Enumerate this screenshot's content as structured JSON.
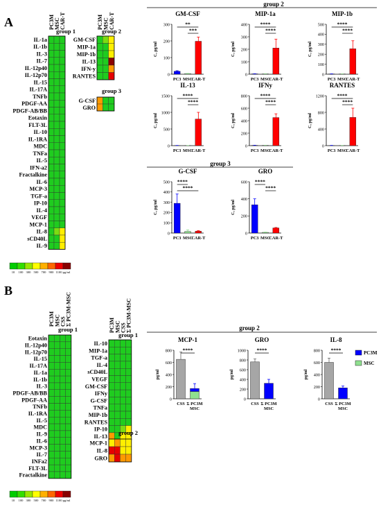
{
  "colors": {
    "red": "#ff0000",
    "blue": "#0000ff",
    "green": "#8fe08f",
    "gray": "#a6a6a6"
  },
  "panel_labels": [
    "A",
    "B"
  ],
  "legend": {
    "ticks": [
      "10",
      "100",
      "300",
      "500",
      "700",
      "900",
      "1100",
      "pg/ml"
    ],
    "colors": [
      "#00cc00",
      "#33dd00",
      "#99e600",
      "#ffff00",
      "#ffb000",
      "#ff6600",
      "#ee0000",
      "#880000"
    ]
  },
  "heatmap_values": {
    "G": "#1fcc1f",
    "g": "#7ddc12",
    "Y": "#ffef00",
    "O": "#ff9900",
    "R": "#e60000",
    "D": "#8b0000"
  },
  "heatmaps": [
    {
      "id": "A1",
      "group": "group 1",
      "columns": [
        "PC3M",
        "MSC",
        "CAR-T"
      ],
      "rows": [
        "IL-1a",
        "IL-1b",
        "IL-3",
        "IL-7",
        "IL-12p40",
        "IL-12p70",
        "IL-15",
        "IL-17A",
        "TNFb",
        "PDGF-AA",
        "PDGF-AB/BB",
        "Eotaxin",
        "FLT-3L",
        "IL-10",
        "IL-1RA",
        "MDC",
        "TNFa",
        "IL-5",
        "IFN-a2",
        "Fractalkine",
        "IL-6",
        "MCP-3",
        "TGF-a",
        "IP-10",
        "IL-4",
        "VEGF",
        "MCP-1",
        "IL-8",
        "sCD40L",
        "IL-9"
      ],
      "cells": [
        "GGG",
        "GGG",
        "GGG",
        "GGG",
        "GGG",
        "GGG",
        "GGG",
        "GGG",
        "GGG",
        "GGG",
        "GGG",
        "GGG",
        "GGG",
        "GGG",
        "GGG",
        "GGG",
        "GGG",
        "GGG",
        "GGG",
        "GGG",
        "GGG",
        "GGG",
        "GGG",
        "GGG",
        "GGG",
        "GGG",
        "GGG",
        "GgY",
        "GGY",
        "GGY"
      ]
    },
    {
      "id": "A2",
      "group": "group 2",
      "columns": [
        "PC3M",
        "MSC",
        "CAR-T"
      ],
      "rows": [
        "GM-CSF",
        "MIP-1a",
        "MIP-1b",
        "IL-13",
        "IFN-y",
        "RANTES"
      ],
      "cells": [
        "GgY",
        "GGY",
        "GGY",
        "GGD",
        "GGO",
        "GGR"
      ]
    },
    {
      "id": "A3",
      "group": "group 3",
      "columns": [],
      "rows": [
        "G-CSF",
        "GRO"
      ],
      "cells": [
        "OGG",
        "OGG"
      ]
    },
    {
      "id": "B1",
      "group": "group 1",
      "columns": [
        "PC3M",
        "MSC",
        "CSS",
        "Σ PC3M-MSC"
      ],
      "rows": [
        "Eotaxin",
        "IL-12p40",
        "IL-12p70",
        "IL-15",
        "IL-17A",
        "IL-1a",
        "IL-1b",
        "IL-3",
        "PDGF-AB/BB",
        "PDGF-AA",
        "TNFb",
        "IL-1RA",
        "IL-5",
        "MDC",
        "IL-9",
        "IL-6",
        "MCP-3",
        "IL-7",
        "INFa2",
        "FLT-3L",
        "Fractalkine"
      ],
      "cells": [
        "GGGG",
        "GGGG",
        "GGGG",
        "GGGG",
        "GGGG",
        "GGGG",
        "GGGG",
        "GGGG",
        "GGGG",
        "GGGG",
        "GGGG",
        "GGGG",
        "GGGG",
        "GGGG",
        "GGGG",
        "GGGG",
        "GGGG",
        "GGGG",
        "GGGG",
        "GGGG",
        "GGGG"
      ]
    },
    {
      "id": "B2",
      "group": "group 1",
      "columns": [
        "PC3M",
        "MSC",
        "CSS",
        "Σ PC3M-MSC"
      ],
      "rows": [
        "IL-10",
        "MIP-1a",
        "TGF-a",
        "IL-4",
        "sCD40L",
        "VEGF",
        "GM-CSF",
        "IFNy",
        "G-CSF",
        "TNFa",
        "MIP-1b",
        "RANTES",
        "IP-10",
        "IL-13"
      ],
      "cells": [
        "GGGG",
        "GGGG",
        "GGGG",
        "GGGG",
        "GGGG",
        "GGGG",
        "GGGG",
        "GGGG",
        "GGGG",
        "GGGG",
        "GGGG",
        "GGGG",
        "GGgY",
        "OGYY"
      ]
    },
    {
      "id": "B3",
      "group": "group 2",
      "columns": [],
      "rows": [
        "MCP-1",
        "IL-8",
        "GRO"
      ],
      "cells": [
        "YOYY",
        "RRYY",
        "OROO"
      ]
    }
  ],
  "section_titles": {
    "A_group2": "group 2",
    "A_group3": "group 3",
    "B_group2": "group 2"
  },
  "chart_data": [
    {
      "type": "bar",
      "title": "GM-CSF",
      "categories": [
        "PC3",
        "MSC",
        "CAR-T"
      ],
      "values": [
        18,
        4,
        198
      ],
      "errors": [
        3,
        1,
        25
      ],
      "colors": [
        "blue",
        "green",
        "red"
      ],
      "ylabel": "C, pg/ml",
      "ylim": [
        0,
        300
      ],
      "yticks": [
        "0",
        "100",
        "200",
        "300"
      ],
      "sig": [
        {
          "from": 0,
          "to": 2,
          "label": "**"
        },
        {
          "from": 1,
          "to": 2,
          "label": "***"
        }
      ]
    },
    {
      "type": "bar",
      "title": "MIP-1a",
      "categories": [
        "PC3",
        "MSC",
        "CAR-T"
      ],
      "values": [
        3,
        3,
        210
      ],
      "errors": [
        1,
        1,
        70
      ],
      "colors": [
        "blue",
        "green",
        "red"
      ],
      "ylabel": "C, pg/ml",
      "ylim": [
        0,
        400
      ],
      "yticks": [
        "0",
        "100",
        "200",
        "300",
        "400"
      ],
      "sig": [
        {
          "from": 0,
          "to": 2,
          "label": "****"
        },
        {
          "from": 1,
          "to": 2,
          "label": "****"
        }
      ]
    },
    {
      "type": "bar",
      "title": "MIP-1b",
      "categories": [
        "PC3",
        "MSC",
        "CAR-T"
      ],
      "values": [
        3,
        3,
        255
      ],
      "errors": [
        1,
        1,
        80
      ],
      "colors": [
        "blue",
        "green",
        "red"
      ],
      "ylabel": "C, pg/ml",
      "ylim": [
        0,
        500
      ],
      "yticks": [
        "0",
        "100",
        "200",
        "300",
        "400",
        "500"
      ],
      "sig": [
        {
          "from": 0,
          "to": 2,
          "label": "****"
        },
        {
          "from": 1,
          "to": 2,
          "label": "****"
        }
      ]
    },
    {
      "type": "bar",
      "title": "IL-13",
      "categories": [
        "PC3",
        "MSC",
        "CAR-T"
      ],
      "values": [
        5,
        5,
        800
      ],
      "errors": [
        2,
        2,
        200
      ],
      "colors": [
        "blue",
        "green",
        "red"
      ],
      "ylabel": "C, pg/ml",
      "ylim": [
        0,
        1500
      ],
      "yticks": [
        "0",
        "500",
        "1000",
        "1500"
      ],
      "sig": [
        {
          "from": 0,
          "to": 2,
          "label": "****"
        },
        {
          "from": 1,
          "to": 2,
          "label": "****"
        }
      ]
    },
    {
      "type": "bar",
      "title": "IFNy",
      "categories": [
        "PC3",
        "MSC",
        "CAR-T"
      ],
      "values": [
        5,
        5,
        450
      ],
      "errors": [
        2,
        2,
        60
      ],
      "colors": [
        "blue",
        "green",
        "red"
      ],
      "ylabel": "C, pg/ml",
      "ylim": [
        0,
        800
      ],
      "yticks": [
        "0",
        "200",
        "400",
        "600",
        "800"
      ],
      "sig": [
        {
          "from": 0,
          "to": 2,
          "label": "****"
        },
        {
          "from": 1,
          "to": 2,
          "label": "****"
        }
      ]
    },
    {
      "type": "bar",
      "title": "RANTES",
      "categories": [
        "PC3",
        "MSC",
        "CAR-T"
      ],
      "values": [
        5,
        5,
        680
      ],
      "errors": [
        2,
        2,
        220
      ],
      "colors": [
        "blue",
        "green",
        "red"
      ],
      "ylabel": "C, pg/ml",
      "ylim": [
        0,
        1200
      ],
      "yticks": [
        "0",
        "400",
        "800",
        "1200"
      ],
      "sig": [
        {
          "from": 0,
          "to": 2,
          "label": "****"
        },
        {
          "from": 1,
          "to": 2,
          "label": "****"
        }
      ]
    },
    {
      "type": "bar",
      "title": "G-CSF",
      "categories": [
        "PC3",
        "MSC",
        "CAR-T"
      ],
      "values": [
        290,
        15,
        18
      ],
      "errors": [
        90,
        15,
        5
      ],
      "colors": [
        "blue",
        "green",
        "red"
      ],
      "ylabel": "C, pg/ml",
      "ylim": [
        0,
        500
      ],
      "yticks": [
        "0",
        "100",
        "200",
        "300",
        "400",
        "500"
      ],
      "sig": [
        {
          "from": 0,
          "to": 1,
          "label": "****"
        },
        {
          "from": 0,
          "to": 2,
          "label": "****"
        }
      ]
    },
    {
      "type": "bar",
      "title": "GRO",
      "categories": [
        "PC3",
        "MSC",
        "CAR-T"
      ],
      "values": [
        330,
        8,
        60
      ],
      "errors": [
        70,
        3,
        5
      ],
      "colors": [
        "blue",
        "green",
        "red"
      ],
      "ylabel": "C, pg/ml",
      "ylim": [
        0,
        600
      ],
      "yticks": [
        "0",
        "200",
        "400",
        "600"
      ],
      "sig": [
        {
          "from": 0,
          "to": 1,
          "label": "****"
        },
        {
          "from": 1,
          "to": 2,
          "label": "****"
        }
      ]
    },
    {
      "type": "bar",
      "title": "MCP-1",
      "categories": [
        "CSS",
        "Σ PC3M\nMSC"
      ],
      "stacked": true,
      "css": 650,
      "css_err": 120,
      "pc3m": 50,
      "msc": 120,
      "sum_err": 80,
      "ylabel": "pg/ml",
      "ylim": [
        0,
        800
      ],
      "yticks": [
        "0",
        "200",
        "400",
        "600",
        "800"
      ],
      "sig": [
        {
          "from": 0,
          "to": 1,
          "label": "****"
        }
      ]
    },
    {
      "type": "bar",
      "title": "GRO",
      "categories": [
        "CSS",
        "Σ PC3M\nMSC"
      ],
      "stacked": true,
      "css": 760,
      "css_err": 60,
      "pc3m": 320,
      "msc": 0,
      "sum_err": 80,
      "ylabel": "pg/ml",
      "ylim": [
        0,
        1000
      ],
      "yticks": [
        "0",
        "200",
        "400",
        "600",
        "800",
        "1000"
      ],
      "sig": [
        {
          "from": 0,
          "to": 1,
          "label": "****"
        }
      ]
    },
    {
      "type": "bar",
      "title": "IL-8",
      "categories": [
        "CSS",
        "Σ PC3M\nMSC"
      ],
      "stacked": true,
      "css": 600,
      "css_err": 70,
      "pc3m": 180,
      "msc": 0,
      "sum_err": 30,
      "ylabel": "pg/ml",
      "ylim": [
        0,
        800
      ],
      "yticks": [
        "0",
        "200",
        "400",
        "600",
        "800"
      ],
      "sig": [
        {
          "from": 0,
          "to": 1,
          "label": "****"
        }
      ]
    }
  ],
  "legend_B": [
    {
      "name": "PC3M",
      "color": "blue"
    },
    {
      "name": "MSC",
      "color": "green"
    }
  ]
}
